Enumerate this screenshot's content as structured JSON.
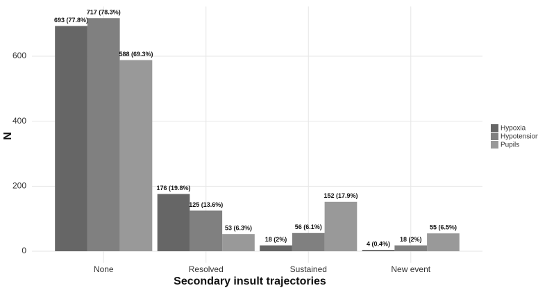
{
  "chart_data": {
    "type": "bar",
    "x_label": "Secondary insult trajectories",
    "y_label": "N",
    "categories": [
      "None",
      "Resolved",
      "Sustained",
      "New event"
    ],
    "series": [
      {
        "name": "Hypoxia",
        "color": "#666666",
        "values": [
          693,
          176,
          18,
          4
        ],
        "value_labels": [
          "693 (77.8%)",
          "176 (19.8%)",
          "18 (2%)",
          "4 (0.4%)"
        ]
      },
      {
        "name": "Hypotension",
        "color": "#808080",
        "values": [
          717,
          125,
          56,
          18
        ],
        "value_labels": [
          "717 (78.3%)",
          "125 (13.6%)",
          "56 (6.1%)",
          "18 (2%)"
        ]
      },
      {
        "name": "Pupils",
        "color": "#999999",
        "values": [
          588,
          53,
          152,
          55
        ],
        "value_labels": [
          "588 (69.3%)",
          "53 (6.3%)",
          "152 (17.9%)",
          "55 (6.5%)"
        ]
      }
    ],
    "ylim": [
      -35.85,
      752.85
    ],
    "yticks": [
      0,
      200,
      400,
      600
    ],
    "grid": true,
    "legend": "right"
  }
}
